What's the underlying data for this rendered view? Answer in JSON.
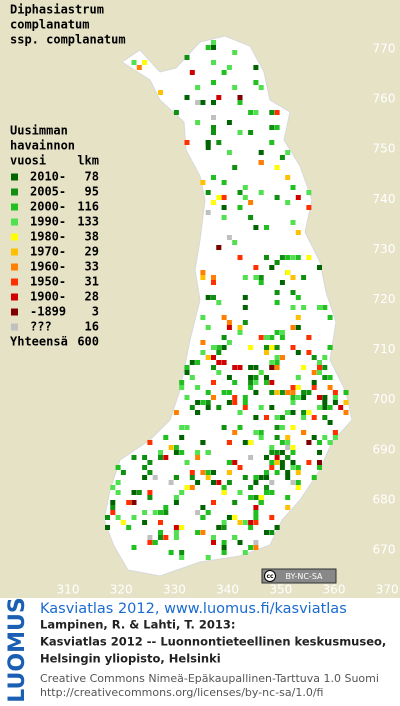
{
  "title": [
    "Diphasiastrum",
    "complanatum",
    "ssp. complanatum"
  ],
  "legend": {
    "heading": [
      "Uusimman",
      "havainnon"
    ],
    "col_year": "vuosi",
    "col_count": "lkm",
    "rows": [
      {
        "label": "2010-",
        "count": 78,
        "color": "#006400"
      },
      {
        "label": "2005-",
        "count": 95,
        "color": "#109010"
      },
      {
        "label": "2000-",
        "count": 116,
        "color": "#20c020"
      },
      {
        "label": "1990-",
        "count": 133,
        "color": "#50e050"
      },
      {
        "label": "1980-",
        "count": 38,
        "color": "#ffff00"
      },
      {
        "label": "1970-",
        "count": 29,
        "color": "#ffc000"
      },
      {
        "label": "1960-",
        "count": 33,
        "color": "#ff8000"
      },
      {
        "label": "1950-",
        "count": 31,
        "color": "#ff3000"
      },
      {
        "label": "1900-",
        "count": 28,
        "color": "#d00000"
      },
      {
        "label": "-1899",
        "count": 3,
        "color": "#800000"
      },
      {
        "label": "???",
        "count": 16,
        "color": "#c0c0c0"
      }
    ],
    "total_label": "Yhteensä",
    "total": 600
  },
  "axis": {
    "x_labels": [
      310,
      320,
      330,
      340,
      350,
      360,
      370
    ],
    "y_labels": [
      770,
      760,
      750,
      740,
      730,
      720,
      710,
      700,
      690,
      680,
      670
    ]
  },
  "badge": {
    "icon": "cc",
    "text": "BY-NC-SA"
  },
  "footer": {
    "brand": "LUOMUS",
    "link": "Kasviatlas 2012, www.luomus.fi/kasviatlas",
    "citation": [
      "Lampinen, R. & Lahti, T. 2013:",
      "Kasviatlas 2012 -- Luonnontieteellinen keskusmuseo,",
      "Helsingin yliopisto, Helsinki"
    ],
    "license": [
      "Creative Commons Nimeä-Epäkaupallinen-Tarttuva 1.0 Suomi",
      "http://creativecommons.org/licenses/by-nc-sa/1.0/fi"
    ]
  }
}
